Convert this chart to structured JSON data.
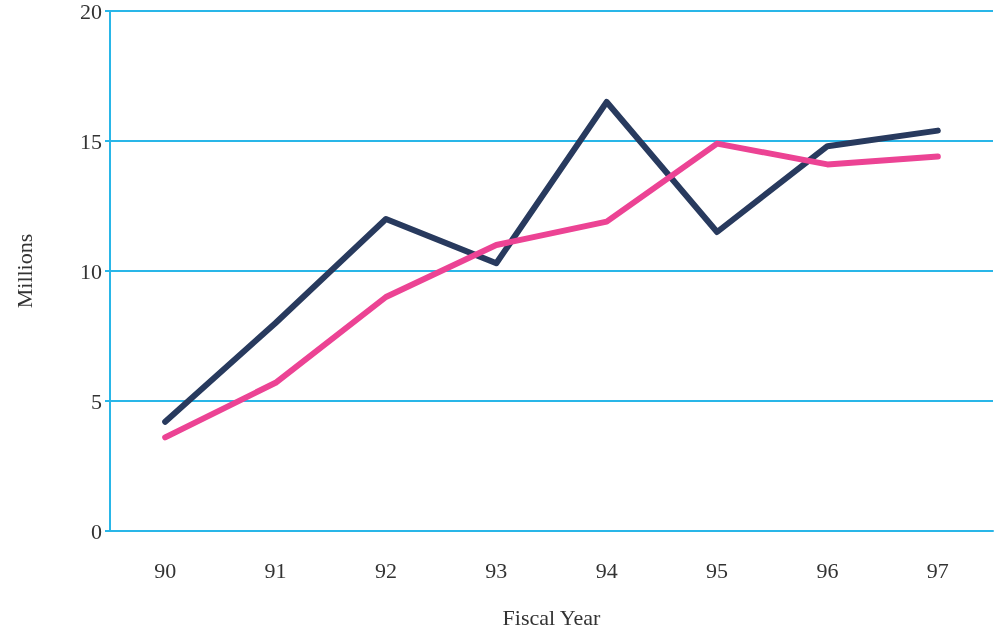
{
  "chart_data": {
    "type": "line",
    "xlabel": "Fiscal Year",
    "ylabel": "Millions",
    "categories": [
      "90",
      "91",
      "92",
      "93",
      "94",
      "95",
      "96",
      "97"
    ],
    "series": [
      {
        "color": "#283a5e",
        "values": [
          4.2,
          8.0,
          12.0,
          10.3,
          16.5,
          11.5,
          14.8,
          15.4
        ]
      },
      {
        "color": "#ec4394",
        "values": [
          3.6,
          5.7,
          9.0,
          11.0,
          11.9,
          14.9,
          14.1,
          14.4
        ]
      }
    ],
    "ylim": [
      0,
      20
    ],
    "yticks": [
      0,
      5,
      10,
      15,
      20
    ],
    "grid": "y",
    "marker": "none",
    "line_style": "solid"
  }
}
